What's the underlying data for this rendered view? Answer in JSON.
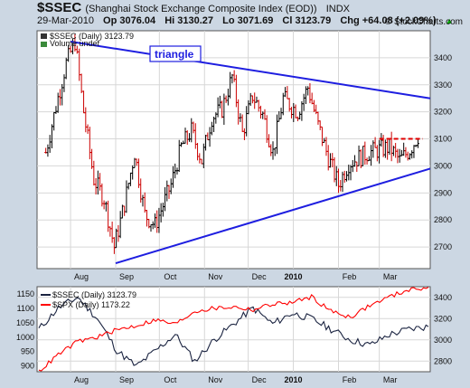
{
  "header": {
    "symbol": "$SSEC",
    "name": "(Shanghai Stock Exchange Composite Index (EOD))",
    "exchange": "INDX",
    "date": "29-Mar-2010",
    "open": "Op 3076.04",
    "high": "Hi 3130.27",
    "low": "Lo 3071.69",
    "close": "Cl 3123.79",
    "change": "Chg +64.08 (+2.09%)",
    "change_arrow": "▲",
    "copyright": "© StockCharts.com"
  },
  "main_legend": {
    "label": "$SSEC (Daily) 3123.79",
    "volume_label": "Volume undef"
  },
  "annotation": {
    "text": "triangle"
  },
  "lower_legend": {
    "ssec": "$SSEC (Daily) 3123.79",
    "spx": "$SPX (Daily) 1173.22"
  },
  "colors": {
    "background": "#ccd7e3",
    "panel": "#ffffff",
    "grid": "#d7d7d7",
    "up_bar": "#000000",
    "down_bar": "#cc0000",
    "trendline": "#1e1ee0",
    "resistance": "#e00000",
    "ssec_line": "#1a2340",
    "spx_line": "#ff0000"
  },
  "chart_data": [
    {
      "type": "line",
      "title": "$SSEC (Daily) 3123.79",
      "style": "ohlc-bars",
      "x_labels": [
        "Aug",
        "Sep",
        "Oct",
        "Nov",
        "Dec",
        "2010",
        "Feb",
        "Mar"
      ],
      "y_ticks": [
        2700,
        2800,
        2900,
        3000,
        3100,
        3200,
        3300,
        3400
      ],
      "ylim": [
        2620,
        3500
      ],
      "grid": true,
      "series": [
        {
          "name": "$SSEC",
          "x": [
            "2009-07-15",
            "2009-07-22",
            "2009-07-29",
            "2009-08-04",
            "2009-08-10",
            "2009-08-17",
            "2009-08-24",
            "2009-08-31",
            "2009-09-07",
            "2009-09-14",
            "2009-09-21",
            "2009-09-28",
            "2009-10-09",
            "2009-10-16",
            "2009-10-23",
            "2009-10-30",
            "2009-11-06",
            "2009-11-13",
            "2009-11-20",
            "2009-11-27",
            "2009-12-04",
            "2009-12-11",
            "2009-12-18",
            "2009-12-25",
            "2010-01-04",
            "2010-01-11",
            "2010-01-18",
            "2010-01-25",
            "2010-02-01",
            "2010-02-08",
            "2010-02-22",
            "2010-03-01",
            "2010-03-08",
            "2010-03-15",
            "2010-03-22",
            "2010-03-29"
          ],
          "values": [
            3050,
            3220,
            3380,
            3460,
            3200,
            2950,
            2880,
            2700,
            2860,
            3050,
            2820,
            2780,
            2930,
            3070,
            3130,
            3020,
            3180,
            3210,
            3330,
            3120,
            3260,
            3190,
            3050,
            3250,
            3200,
            3290,
            3150,
            3030,
            2930,
            3010,
            3050,
            3060,
            3070,
            3020,
            3060,
            3124
          ]
        }
      ],
      "annotations": [
        {
          "text": "triangle",
          "kind": "upper-trendline",
          "from": [
            "2009-08-01",
            3460
          ],
          "to": [
            "2010-04-05",
            3250
          ]
        },
        {
          "kind": "lower-trendline",
          "from": [
            "2009-09-01",
            2640
          ],
          "to": [
            "2010-04-05",
            2990
          ]
        },
        {
          "kind": "resistance",
          "from": [
            "2010-03-01",
            3100
          ],
          "to": [
            "2010-03-31",
            3100
          ]
        }
      ]
    },
    {
      "type": "line",
      "x_labels": [
        "Aug",
        "Sep",
        "Oct",
        "Nov",
        "Dec",
        "2010",
        "Feb",
        "Mar"
      ],
      "y_ticks_left": [
        900,
        950,
        1000,
        1050,
        1100,
        1150
      ],
      "y_ticks_right": [
        2800,
        3000,
        3200,
        3400
      ],
      "series": [
        {
          "name": "$SSEC (Daily) 3123.79",
          "axis": "right",
          "values": [
            3100,
            3300,
            3400,
            3200,
            2900,
            2750,
            2900,
            3050,
            2800,
            3000,
            3150,
            3300,
            3150,
            3250,
            3200,
            3100,
            3000,
            2950,
            3050,
            3100,
            3124
          ]
        },
        {
          "name": "$SPX (Daily) 1173.22",
          "axis": "left",
          "values": [
            880,
            940,
            985,
            1000,
            1025,
            1040,
            1060,
            1045,
            1090,
            1100,
            1105,
            1095,
            1115,
            1120,
            1140,
            1090,
            1070,
            1110,
            1140,
            1165,
            1173
          ]
        }
      ]
    }
  ]
}
